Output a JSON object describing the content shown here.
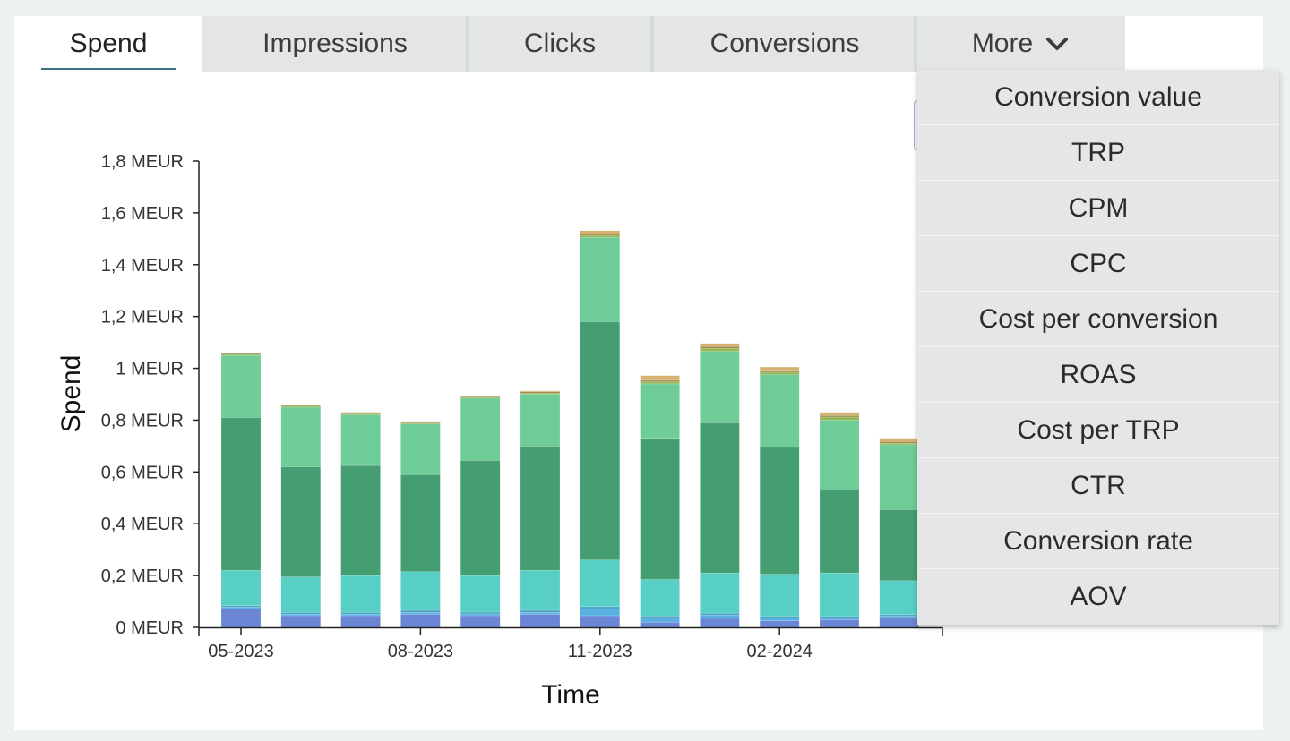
{
  "tabs": [
    {
      "label": "Spend",
      "active": true
    },
    {
      "label": "Impressions",
      "active": false
    },
    {
      "label": "Clicks",
      "active": false
    },
    {
      "label": "Conversions",
      "active": false
    },
    {
      "label": "More",
      "active": false
    }
  ],
  "more_menu": {
    "icon": "chevron-down-icon",
    "items": [
      "Conversion value",
      "TRP",
      "CPM",
      "CPC",
      "Cost per conversion",
      "ROAS",
      "Cost per TRP",
      "CTR",
      "Conversion rate",
      "AOV"
    ]
  },
  "chart_data": {
    "type": "bar",
    "stacked": true,
    "xlabel": "Time",
    "ylabel": "Spend",
    "ylim": [
      0,
      1.8
    ],
    "y_unit": "MEUR",
    "y_ticks": [
      0,
      0.2,
      0.4,
      0.6,
      0.8,
      1,
      1.2,
      1.4,
      1.6,
      1.8
    ],
    "y_tick_labels": [
      "0 MEUR",
      "0,2 MEUR",
      "0,4 MEUR",
      "0,6 MEUR",
      "0,8 MEUR",
      "1 MEUR",
      "1,2 MEUR",
      "1,4 MEUR",
      "1,6 MEUR",
      "1,8 MEUR"
    ],
    "categories": [
      "05-2023",
      "06-2023",
      "07-2023",
      "08-2023",
      "09-2023",
      "10-2023",
      "11-2023",
      "12-2023",
      "01-2024",
      "02-2024",
      "03-2024",
      "04-2024"
    ],
    "x_tick_labels": [
      "05-2023",
      "08-2023",
      "11-2023",
      "02-2024"
    ],
    "grid": false,
    "series": [
      {
        "color": "#6a86d4",
        "values": [
          0.07,
          0.045,
          0.045,
          0.05,
          0.045,
          0.05,
          0.045,
          0.02,
          0.035,
          0.025,
          0.03,
          0.035
        ]
      },
      {
        "color": "#5ab0e2",
        "values": [
          0.008,
          0.006,
          0.006,
          0.008,
          0.007,
          0.008,
          0.025,
          0.018,
          0.013,
          0.012,
          0.007,
          0.008
        ]
      },
      {
        "color": "#4aa4c4",
        "values": [
          0.006,
          0.006,
          0.006,
          0.008,
          0.007,
          0.008,
          0.01,
          0.006,
          0.007,
          0.006,
          0.006,
          0.006
        ]
      },
      {
        "color": "#57cfc4",
        "values": [
          0.136,
          0.138,
          0.143,
          0.149,
          0.141,
          0.154,
          0.18,
          0.141,
          0.155,
          0.162,
          0.167,
          0.131
        ]
      },
      {
        "color": "#459e72",
        "values": [
          0.59,
          0.425,
          0.425,
          0.375,
          0.445,
          0.48,
          0.92,
          0.545,
          0.58,
          0.49,
          0.32,
          0.275
        ]
      },
      {
        "color": "#6ecd96",
        "values": [
          0.24,
          0.23,
          0.195,
          0.195,
          0.24,
          0.2,
          0.325,
          0.21,
          0.275,
          0.28,
          0.27,
          0.25
        ]
      },
      {
        "color": "#8fb85a",
        "values": [
          0.004,
          0.004,
          0.004,
          0.004,
          0.004,
          0.004,
          0.008,
          0.008,
          0.012,
          0.01,
          0.012,
          0.006
        ]
      },
      {
        "color": "#a38a4c",
        "values": [
          0.006,
          0.006,
          0.006,
          0.006,
          0.006,
          0.006,
          0.006,
          0.006,
          0.007,
          0.008,
          0.006,
          0.006
        ]
      },
      {
        "color": "#d6b070",
        "values": [
          0.0,
          0.0,
          0.0,
          0.0,
          0.0,
          0.003,
          0.012,
          0.018,
          0.012,
          0.012,
          0.012,
          0.013
        ]
      }
    ]
  }
}
